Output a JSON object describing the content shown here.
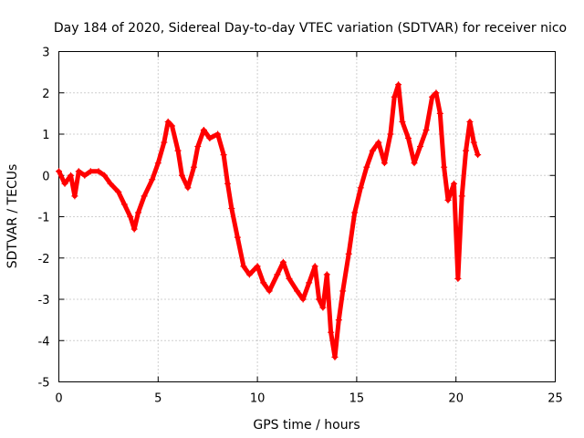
{
  "chart_data": {
    "type": "scatter",
    "title": "Day 184 of 2020, Sidereal Day-to-day VTEC variation (SDTVAR) for receiver nico",
    "xlabel": "GPS time / hours",
    "ylabel": "SDTVAR / TECUs",
    "xlim": [
      0,
      25
    ],
    "ylim": [
      -5,
      3
    ],
    "xticks": [
      0,
      5,
      10,
      15,
      20,
      25
    ],
    "yticks": [
      -5,
      -4,
      -3,
      -2,
      -1,
      0,
      1,
      2,
      3
    ],
    "grid": true,
    "marker": "+",
    "color": "#ff0000",
    "series": [
      {
        "name": "SDTVAR",
        "points": [
          [
            0.0,
            0.1
          ],
          [
            0.3,
            -0.2
          ],
          [
            0.6,
            0.0
          ],
          [
            0.8,
            -0.5
          ],
          [
            1.0,
            0.1
          ],
          [
            1.3,
            0.0
          ],
          [
            1.6,
            0.1
          ],
          [
            2.0,
            0.1
          ],
          [
            2.3,
            0.0
          ],
          [
            2.6,
            -0.2
          ],
          [
            3.0,
            -0.4
          ],
          [
            3.3,
            -0.7
          ],
          [
            3.6,
            -1.0
          ],
          [
            3.8,
            -1.3
          ],
          [
            4.0,
            -0.9
          ],
          [
            4.3,
            -0.5
          ],
          [
            4.7,
            -0.1
          ],
          [
            5.0,
            0.3
          ],
          [
            5.3,
            0.8
          ],
          [
            5.5,
            1.3
          ],
          [
            5.7,
            1.2
          ],
          [
            6.0,
            0.6
          ],
          [
            6.2,
            0.0
          ],
          [
            6.5,
            -0.3
          ],
          [
            6.8,
            0.2
          ],
          [
            7.0,
            0.7
          ],
          [
            7.3,
            1.1
          ],
          [
            7.6,
            0.9
          ],
          [
            8.0,
            1.0
          ],
          [
            8.3,
            0.5
          ],
          [
            8.5,
            -0.2
          ],
          [
            8.7,
            -0.8
          ],
          [
            9.0,
            -1.5
          ],
          [
            9.3,
            -2.2
          ],
          [
            9.6,
            -2.4
          ],
          [
            10.0,
            -2.2
          ],
          [
            10.3,
            -2.6
          ],
          [
            10.6,
            -2.8
          ],
          [
            11.0,
            -2.4
          ],
          [
            11.3,
            -2.1
          ],
          [
            11.6,
            -2.5
          ],
          [
            12.0,
            -2.8
          ],
          [
            12.3,
            -3.0
          ],
          [
            12.6,
            -2.6
          ],
          [
            12.9,
            -2.2
          ],
          [
            13.1,
            -3.0
          ],
          [
            13.3,
            -3.2
          ],
          [
            13.5,
            -2.4
          ],
          [
            13.7,
            -3.8
          ],
          [
            13.9,
            -4.4
          ],
          [
            14.1,
            -3.5
          ],
          [
            14.3,
            -2.8
          ],
          [
            14.6,
            -1.9
          ],
          [
            14.9,
            -0.9
          ],
          [
            15.2,
            -0.3
          ],
          [
            15.5,
            0.2
          ],
          [
            15.8,
            0.6
          ],
          [
            16.1,
            0.8
          ],
          [
            16.4,
            0.3
          ],
          [
            16.7,
            1.0
          ],
          [
            16.9,
            1.9
          ],
          [
            17.1,
            2.2
          ],
          [
            17.3,
            1.3
          ],
          [
            17.6,
            0.9
          ],
          [
            17.9,
            0.3
          ],
          [
            18.2,
            0.7
          ],
          [
            18.5,
            1.1
          ],
          [
            18.8,
            1.9
          ],
          [
            19.0,
            2.0
          ],
          [
            19.2,
            1.5
          ],
          [
            19.4,
            0.2
          ],
          [
            19.6,
            -0.6
          ],
          [
            19.9,
            -0.2
          ],
          [
            20.1,
            -2.5
          ],
          [
            20.3,
            -0.5
          ],
          [
            20.5,
            0.6
          ],
          [
            20.7,
            1.3
          ],
          [
            20.9,
            0.8
          ],
          [
            21.1,
            0.5
          ]
        ]
      }
    ]
  }
}
